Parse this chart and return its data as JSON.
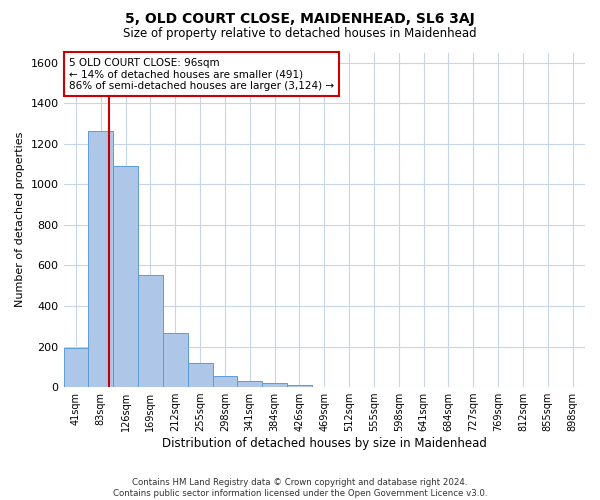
{
  "title": "5, OLD COURT CLOSE, MAIDENHEAD, SL6 3AJ",
  "subtitle": "Size of property relative to detached houses in Maidenhead",
  "xlabel": "Distribution of detached houses by size in Maidenhead",
  "ylabel": "Number of detached properties",
  "footer_line1": "Contains HM Land Registry data © Crown copyright and database right 2024.",
  "footer_line2": "Contains public sector information licensed under the Open Government Licence v3.0.",
  "bar_labels": [
    "41sqm",
    "83sqm",
    "126sqm",
    "169sqm",
    "212sqm",
    "255sqm",
    "298sqm",
    "341sqm",
    "384sqm",
    "426sqm",
    "469sqm",
    "512sqm",
    "555sqm",
    "598sqm",
    "641sqm",
    "684sqm",
    "727sqm",
    "769sqm",
    "812sqm",
    "855sqm",
    "898sqm"
  ],
  "bar_values": [
    195,
    1265,
    1090,
    555,
    265,
    120,
    55,
    30,
    20,
    10,
    0,
    0,
    0,
    0,
    0,
    0,
    0,
    0,
    0,
    0,
    0
  ],
  "bar_color": "#aec6e8",
  "bar_edge_color": "#5b9bd5",
  "ylim": [
    0,
    1650
  ],
  "yticks": [
    0,
    200,
    400,
    600,
    800,
    1000,
    1200,
    1400,
    1600
  ],
  "property_line_x": 1.35,
  "annotation_line1": "5 OLD COURT CLOSE: 96sqm",
  "annotation_line2": "← 14% of detached houses are smaller (491)",
  "annotation_line3": "86% of semi-detached houses are larger (3,124) →",
  "annotation_box_color": "#ffffff",
  "annotation_box_edge": "#cc0000",
  "vline_color": "#cc0000",
  "background_color": "#ffffff",
  "grid_color": "#c8d4e8",
  "title_fontsize": 10,
  "subtitle_fontsize": 9
}
